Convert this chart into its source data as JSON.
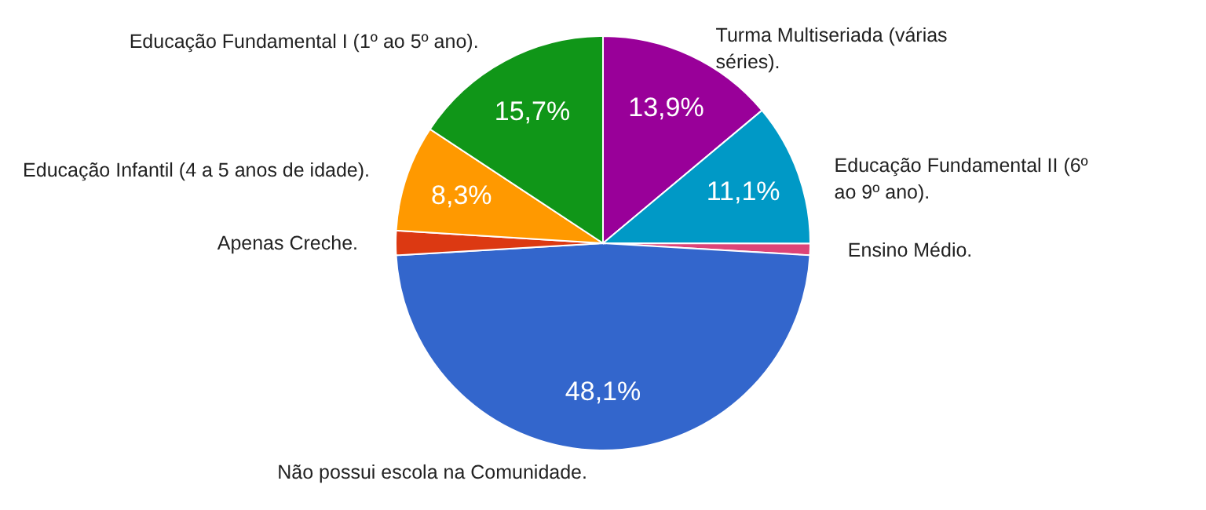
{
  "chart_data": {
    "type": "pie",
    "categories": [
      "Turma Multiseriada (várias séries).",
      "Educação Fundamental II (6º ao 9º ano).",
      "Ensino Médio.",
      "Não possui escola na Comunidade.",
      "Apenas Creche.",
      "Educação Infantil (4 a 5 anos de idade).",
      "Educação Fundamental I (1º ao 5º ano)."
    ],
    "values": [
      13.9,
      11.1,
      0.9,
      48.1,
      1.9,
      8.3,
      15.7
    ],
    "colors": [
      "#990099",
      "#0099c6",
      "#dd4477",
      "#3366cc",
      "#dc3912",
      "#ff9900",
      "#109618"
    ],
    "value_labels": [
      "13,9%",
      "11,1%",
      null,
      "48,1%",
      null,
      "8,3%",
      "15,7%"
    ]
  }
}
